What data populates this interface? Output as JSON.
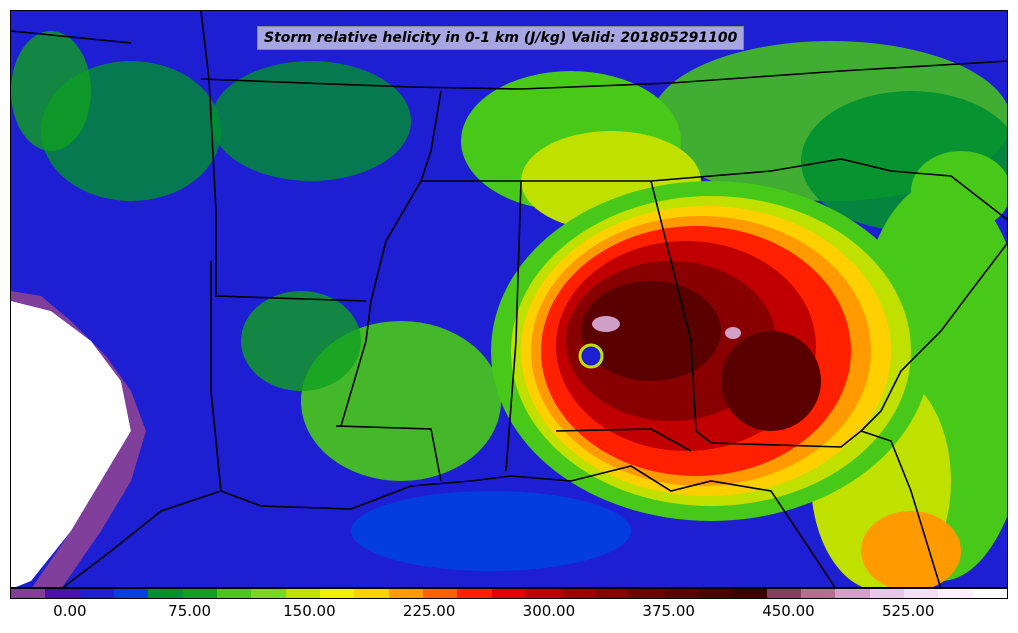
{
  "title": "Storm relative helicity in 0-1 km (J/kg) Valid: 201805291100",
  "colorbar": {
    "colors": [
      "#7f3f9a",
      "#4a0fb0",
      "#1e1ed2",
      "#0040e0",
      "#009030",
      "#10a020",
      "#48c818",
      "#78d820",
      "#c0e000",
      "#f0f000",
      "#ffd000",
      "#ff9a00",
      "#ff6000",
      "#ff2000",
      "#e00000",
      "#c00000",
      "#a00000",
      "#880000",
      "#700000",
      "#5a0000",
      "#480000",
      "#3a0000",
      "#804060",
      "#b07090",
      "#d0a0c8",
      "#e8c8e8",
      "#f4e0f4",
      "#fff0ff",
      "#ffffff"
    ],
    "labels": [
      "0.00",
      "75.00",
      "150.00",
      "225.00",
      "300.00",
      "375.00",
      "450.00",
      "525.00"
    ],
    "label_values": [
      0,
      75,
      150,
      225,
      300,
      375,
      450,
      525
    ],
    "min": -37.5,
    "max": 587.5
  }
}
